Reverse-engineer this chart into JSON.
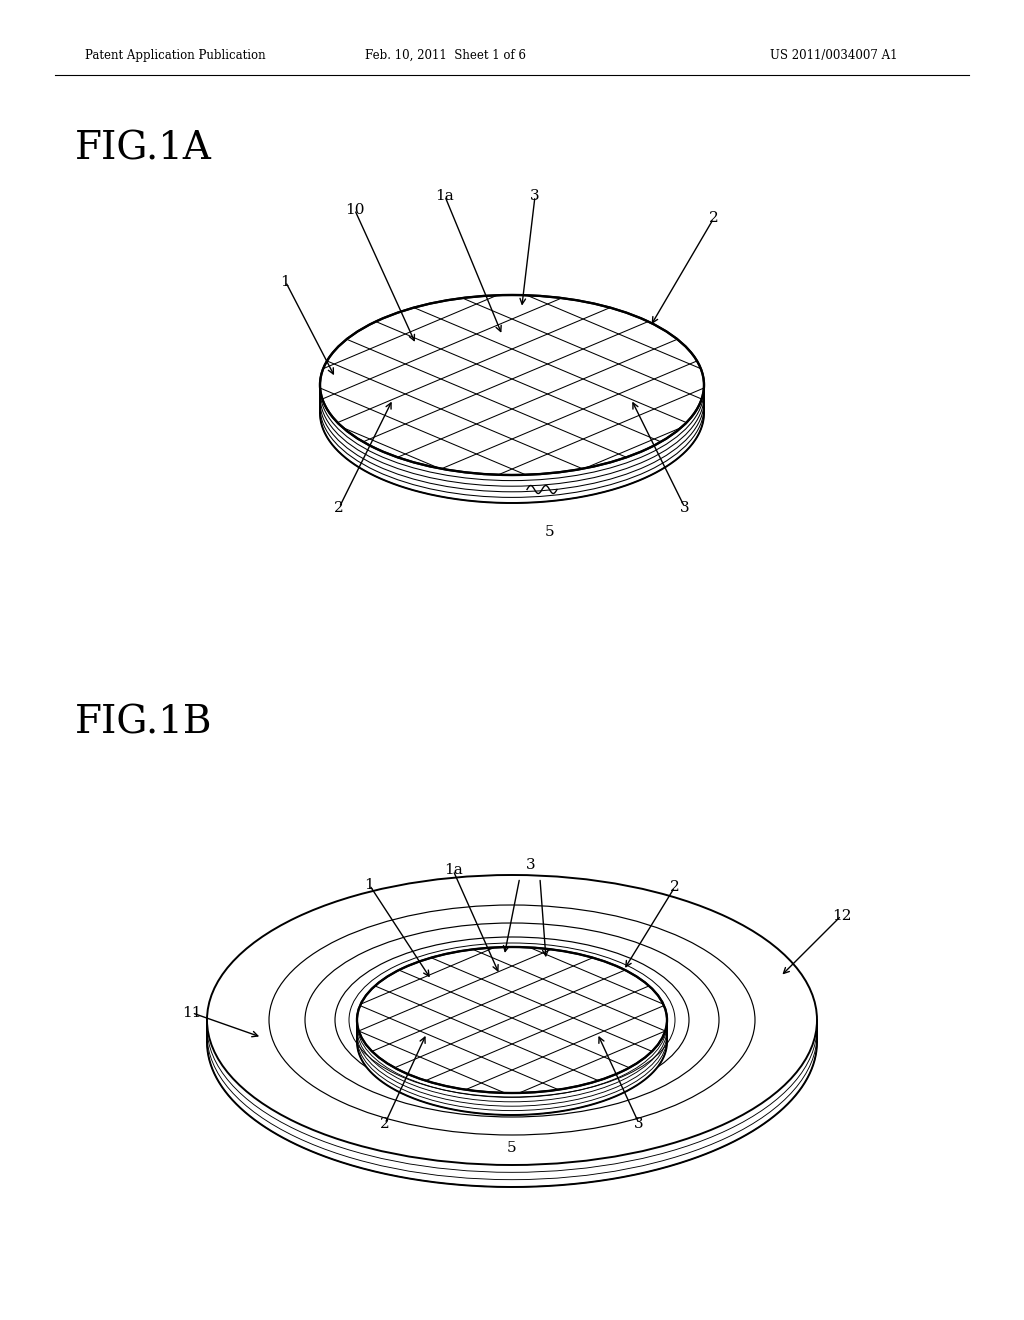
{
  "background_color": "#ffffff",
  "header_text": "Patent Application Publication",
  "header_date": "Feb. 10, 2011  Sheet 1 of 6",
  "header_patent": "US 2011/0034007 A1",
  "fig1a_label": "FIG.1A",
  "fig1b_label": "FIG.1B",
  "line_color": "#000000",
  "line_width": 1.4,
  "page_width": 10.24,
  "page_height": 13.2
}
